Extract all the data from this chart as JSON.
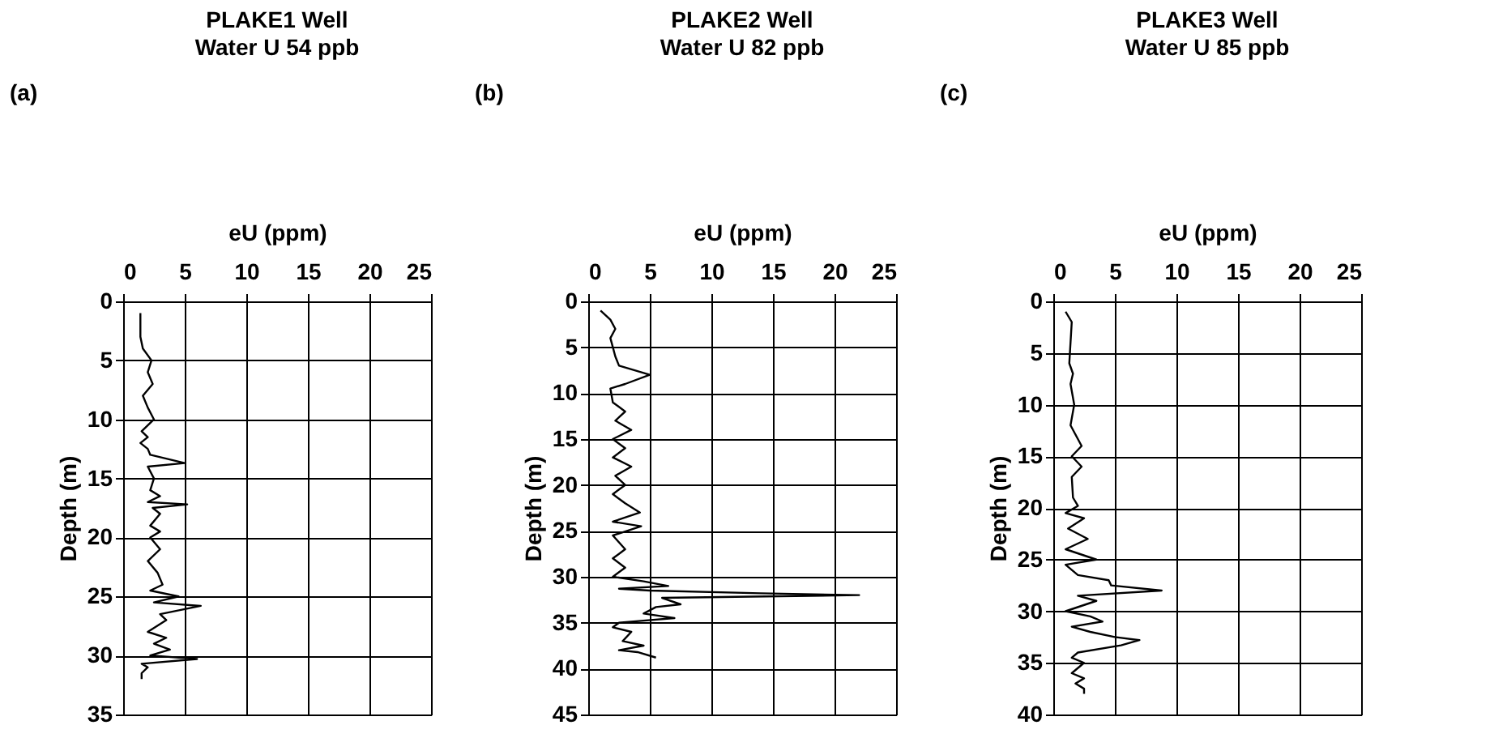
{
  "chart_data": [
    {
      "type": "line",
      "title": "PLAKE1 Well",
      "subtitle": "Water U 54 ppb",
      "annotations": [
        "(a)"
      ],
      "xlabel": "eU (ppm)",
      "ylabel": "Depth (m)",
      "xlim": [
        0,
        25
      ],
      "xticks": [
        0,
        5,
        10,
        15,
        20,
        25
      ],
      "ylim": [
        35,
        0
      ],
      "yticks": [
        0,
        5,
        10,
        15,
        20,
        25,
        30,
        35
      ],
      "grid": true,
      "series": [
        {
          "color": "#000000",
          "x": [
            1.4,
            1.4,
            1.6,
            2.3,
            2.0,
            2.4,
            1.6,
            2.0,
            2.5,
            1.5,
            2.0,
            1.4,
            2.0,
            2.2,
            5.0,
            2.0,
            2.5,
            2.2,
            3.0,
            2.0,
            5.2,
            2.4,
            3.0,
            2.2,
            3.0,
            2.2,
            3.0,
            2.0,
            2.8,
            3.2,
            2.2,
            4.5,
            2.5,
            6.3,
            3.0,
            3.5,
            2.0,
            3.5,
            2.5,
            3.8,
            2.2,
            6.0,
            1.5,
            2.0,
            1.5,
            1.5
          ],
          "values": [
            1,
            3,
            4,
            5,
            6,
            7,
            8,
            9,
            10,
            11,
            11.5,
            12,
            12.5,
            13,
            13.7,
            14,
            15,
            16,
            16.5,
            17,
            17.2,
            17.5,
            18,
            19,
            19.5,
            20,
            21,
            22,
            23,
            24,
            24.5,
            25,
            25.5,
            25.8,
            26.5,
            27,
            28,
            28.5,
            29,
            29.5,
            30,
            30.3,
            30.7,
            31,
            31.5,
            32
          ]
        }
      ]
    },
    {
      "type": "line",
      "title": "PLAKE2 Well",
      "subtitle": "Water U 82 ppb",
      "annotations": [
        "(b)"
      ],
      "xlabel": "eU (ppm)",
      "ylabel": "Depth (m)",
      "xlim": [
        0,
        25
      ],
      "xticks": [
        0,
        5,
        10,
        15,
        20,
        25
      ],
      "ylim": [
        45,
        0
      ],
      "yticks": [
        0,
        5,
        10,
        15,
        20,
        25,
        30,
        35,
        40,
        45
      ],
      "grid": true,
      "series": [
        {
          "color": "#000000",
          "x": [
            1.0,
            1.8,
            2.2,
            1.8,
            2.0,
            2.2,
            2.5,
            5.0,
            3.0,
            1.8,
            2.0,
            3.0,
            2.2,
            3.5,
            2.0,
            3.0,
            2.0,
            3.5,
            2.2,
            3.0,
            2.0,
            3.0,
            4.2,
            2.0,
            4.3,
            2.0,
            3.0,
            2.0,
            3.0,
            2.0,
            4.5,
            6.5,
            2.5,
            5.0,
            14.0,
            22.0,
            6.0,
            7.5,
            5.5,
            4.5,
            7.0,
            2.5,
            2.0,
            3.5,
            2.8,
            4.5,
            2.5,
            4.0,
            5.5
          ],
          "values": [
            1,
            2,
            3,
            4,
            5,
            6,
            7,
            8,
            9,
            9.5,
            11,
            12,
            13,
            14,
            15,
            16,
            17,
            18,
            19,
            20,
            21,
            22,
            23,
            24,
            24.5,
            25.5,
            27,
            28,
            29,
            30,
            30.5,
            31,
            31.3,
            31.5,
            31.8,
            32,
            32.3,
            33,
            33.3,
            34,
            34.5,
            35,
            35.5,
            36,
            37,
            37.5,
            38,
            38.2,
            38.8
          ]
        }
      ]
    },
    {
      "type": "line",
      "title": "PLAKE3 Well",
      "subtitle": "Water U 85 ppb",
      "annotations": [
        "(c)"
      ],
      "xlabel": "eU (ppm)",
      "ylabel": "Depth (m)",
      "xlim": [
        0,
        25
      ],
      "xticks": [
        0,
        5,
        10,
        15,
        20,
        25
      ],
      "ylim": [
        40,
        0
      ],
      "yticks": [
        0,
        5,
        10,
        15,
        20,
        25,
        30,
        35,
        40
      ],
      "grid": true,
      "series": [
        {
          "color": "#000000",
          "x": [
            1.0,
            1.5,
            1.3,
            1.6,
            1.4,
            1.7,
            1.4,
            2.3,
            1.5,
            2.3,
            1.5,
            1.6,
            2.0,
            1.0,
            2.5,
            1.2,
            2.8,
            1.0,
            3.5,
            1.0,
            2.0,
            4.5,
            4.7,
            8.8,
            2.0,
            3.5,
            1.0,
            3.0,
            4.0,
            1.5,
            3.0,
            5.0,
            7.0,
            5.5,
            2.0,
            1.5,
            2.5,
            1.5,
            2.5,
            1.8,
            2.5,
            2.5
          ],
          "values": [
            1,
            2,
            6,
            7,
            8,
            10,
            12,
            14,
            15,
            16,
            17,
            19,
            19.8,
            20.5,
            21,
            22,
            23,
            24,
            25,
            25.5,
            26.5,
            27,
            27.5,
            28,
            28.5,
            29,
            30,
            30.5,
            31,
            31.5,
            32,
            32.5,
            32.8,
            33.3,
            34,
            34.5,
            35,
            36,
            36.5,
            37,
            37.5,
            38
          ]
        }
      ]
    }
  ]
}
